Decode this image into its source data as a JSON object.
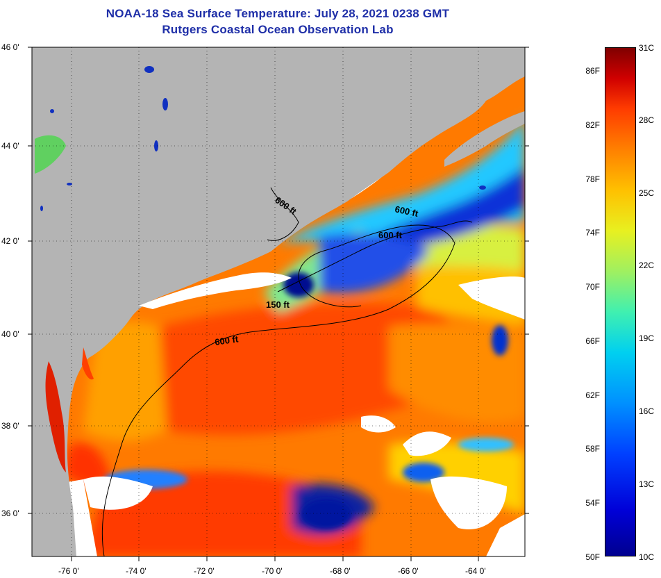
{
  "title_line1": "NOAA-18 Sea Surface Temperature:  July 28, 2021 0238 GMT",
  "title_line2": "Rutgers Coastal Ocean Observation Lab",
  "lat_labels": [
    "46 0'",
    "44 0'",
    "42 0'",
    "40 0'",
    "38 0'",
    "36 0'"
  ],
  "lon_labels": [
    "-76 0'",
    "-74 0'",
    "-72 0'",
    "-70 0'",
    "-68 0'",
    "-66 0'",
    "-64 0'"
  ],
  "depth_labels": [
    "600 ft",
    "600 ft",
    "600 ft",
    "150 ft",
    "600 ft"
  ],
  "colorbar_fahrenheit": [
    "86F",
    "82F",
    "78F",
    "74F",
    "70F",
    "66F",
    "62F",
    "58F",
    "54F",
    "50F"
  ],
  "colorbar_celsius": [
    "31C",
    "28C",
    "25C",
    "22C",
    "19C",
    "16C",
    "13C",
    "10C"
  ],
  "colors": {
    "land": "#b4b4b4",
    "cloud": "#ffffff",
    "warm": "#ff5a00",
    "cold": "#0020c0",
    "title": "#1f2fa8"
  }
}
